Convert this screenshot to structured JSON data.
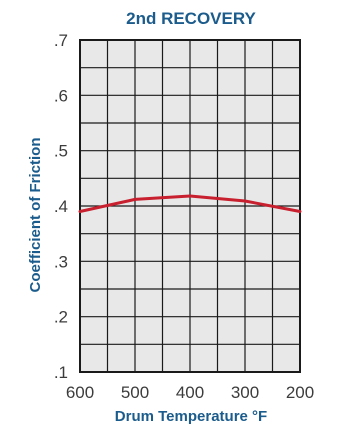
{
  "chart_data": {
    "type": "line",
    "title": "2nd RECOVERY",
    "xlabel": "Drum Temperature °F",
    "ylabel": "Coefficient of Friction",
    "x_ticks": [
      "600",
      "500",
      "400",
      "300",
      "200"
    ],
    "y_ticks": [
      ".7",
      ".6",
      ".5",
      ".4",
      ".3",
      ".2",
      ".1"
    ],
    "xlim": [
      600,
      200
    ],
    "ylim": [
      0.1,
      0.7
    ],
    "grid": true,
    "series": [
      {
        "color": "#c8202e",
        "x": [
          600,
          500,
          400,
          300,
          200
        ],
        "y": [
          0.39,
          0.412,
          0.418,
          0.409,
          0.39
        ]
      }
    ]
  },
  "colors": {
    "title": "#1b5c8c",
    "plot_bg": "#e8e8e8",
    "grid": "#1a1a1a",
    "ticks": "#3c3c3c"
  }
}
